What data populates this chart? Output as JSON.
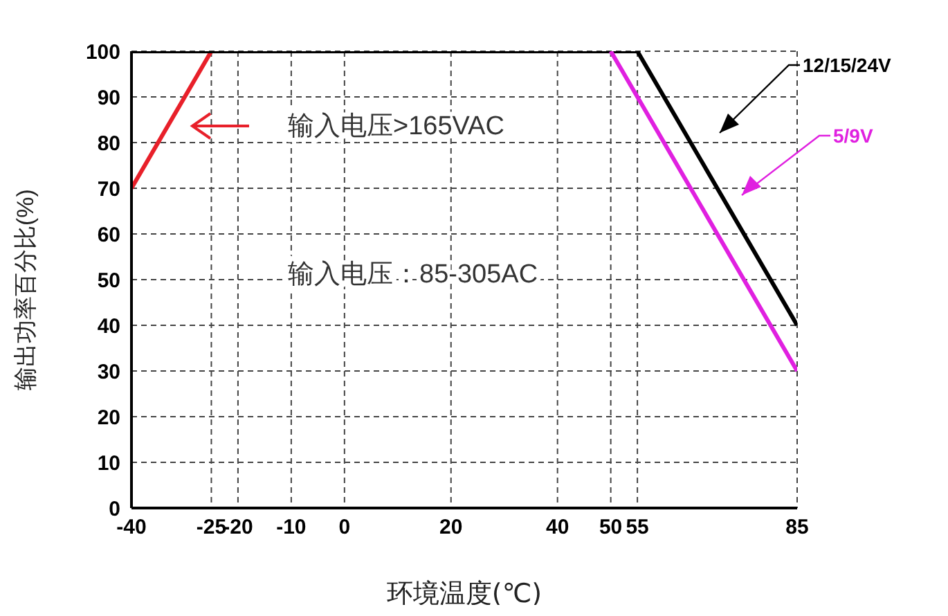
{
  "chart_data": {
    "type": "line",
    "xlabel": "环境温度(℃)",
    "ylabel": "输出功率百分比(%)",
    "annotations": [
      "输入电压>165VAC",
      "输入电压：85-305AC"
    ],
    "series": [
      {
        "color": "#e8202a",
        "x": [
          -40,
          -25
        ],
        "values": [
          70,
          100
        ]
      },
      {
        "name": "12/15/24V",
        "color": "#000000",
        "x": [
          -40,
          55,
          85
        ],
        "values": [
          100,
          100,
          40
        ]
      },
      {
        "name": "5/9V",
        "color": "#e020e0",
        "x": [
          50,
          85
        ],
        "values": [
          100,
          30
        ]
      }
    ],
    "xlim": [
      -40,
      85
    ],
    "xticks": [
      -40,
      -25,
      -20,
      -10,
      0,
      20,
      40,
      50,
      55,
      85
    ],
    "ylim": [
      0,
      100
    ],
    "yticks": [
      0,
      10,
      20,
      30,
      40,
      50,
      60,
      70,
      80,
      90,
      100
    ],
    "grid": true,
    "legend": false
  }
}
